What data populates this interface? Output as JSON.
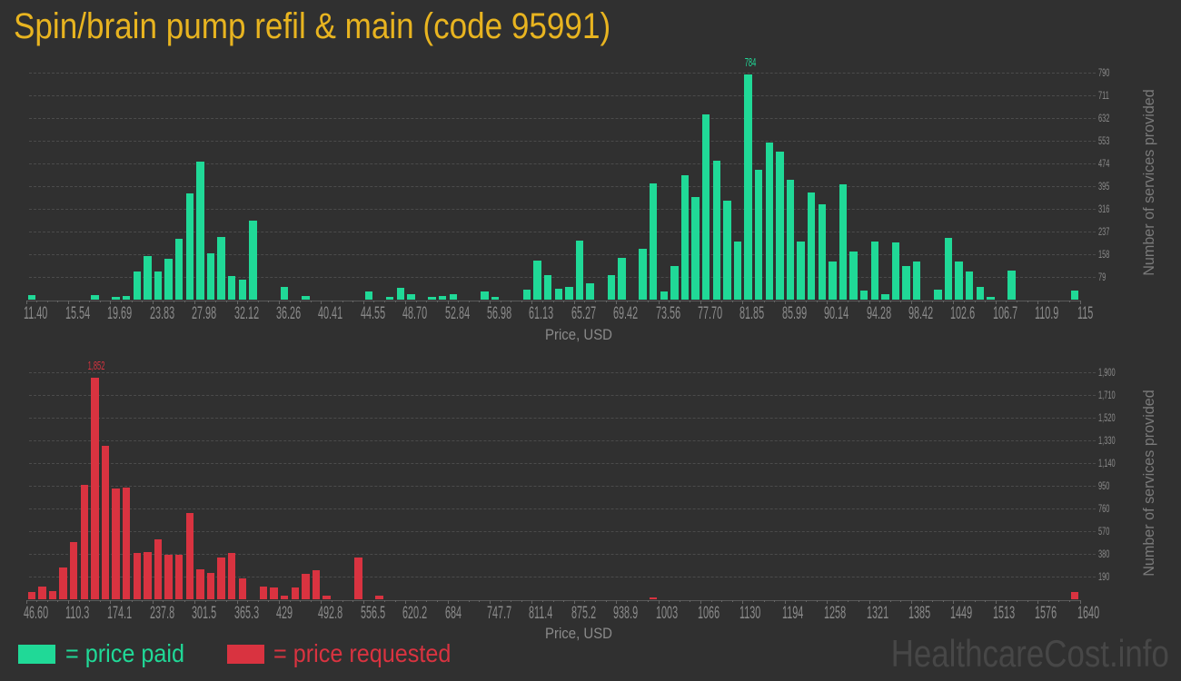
{
  "title": "Spin/brain pump refil & main (code 95991)",
  "colors": {
    "background": "#303030",
    "title": "#e8b420",
    "price_paid": "#20d997",
    "price_requested": "#d93340"
  },
  "chart_data": [
    {
      "type": "bar",
      "series_name": "price paid",
      "title": "",
      "xlabel": "Price, USD",
      "ylabel": "Number of services provided",
      "color": "#20d997",
      "grid": true,
      "xlim": [
        11.4,
        115
      ],
      "ylim": [
        0,
        790
      ],
      "bin_width": 1.036,
      "x_tick_labels": [
        "11.40",
        "15.54",
        "19.69",
        "23.83",
        "27.98",
        "32.12",
        "36.26",
        "40.41",
        "44.55",
        "48.70",
        "52.84",
        "56.98",
        "61.13",
        "65.27",
        "69.42",
        "73.56",
        "77.70",
        "81.85",
        "85.99",
        "90.14",
        "94.28",
        "98.42",
        "102.6",
        "106.7",
        "110.9",
        "115"
      ],
      "y_ticks": [
        79,
        158,
        237,
        316,
        395,
        474,
        553,
        632,
        711,
        790
      ],
      "y_tick_labels": [
        "79",
        "158",
        "237",
        "316",
        "395",
        "474",
        "553",
        "632",
        "711",
        "790"
      ],
      "peak_index": 68,
      "peak_label": "784",
      "x": [
        11.4,
        12.44,
        13.47,
        14.51,
        15.54,
        16.58,
        17.62,
        18.65,
        19.69,
        20.72,
        21.76,
        22.8,
        23.83,
        24.87,
        25.9,
        26.94,
        27.98,
        29.01,
        30.05,
        31.08,
        32.12,
        33.16,
        34.19,
        35.23,
        36.26,
        37.3,
        38.34,
        39.37,
        40.41,
        41.44,
        42.48,
        43.52,
        44.55,
        45.59,
        46.62,
        47.66,
        48.7,
        49.73,
        50.77,
        51.8,
        52.84,
        53.88,
        54.91,
        55.95,
        56.98,
        58.02,
        59.06,
        60.09,
        61.13,
        62.16,
        63.2,
        64.24,
        65.27,
        66.31,
        67.34,
        68.38,
        69.42,
        70.45,
        71.49,
        72.52,
        73.56,
        74.6,
        75.63,
        76.67,
        77.7,
        78.74,
        79.78,
        80.81,
        81.85,
        82.88,
        83.92,
        84.96,
        85.99,
        87.03,
        88.06,
        89.1,
        90.14,
        91.17,
        92.21,
        93.24,
        94.28,
        95.32,
        96.35,
        97.39,
        98.42,
        99.46,
        100.5,
        101.53,
        102.57,
        103.6,
        104.64,
        105.68,
        106.71,
        107.75,
        108.78,
        109.82,
        110.86,
        111.89,
        112.93,
        113.96
      ],
      "values": [
        18,
        0,
        0,
        0,
        0,
        0,
        18,
        0,
        10,
        13,
        98,
        152,
        98,
        143,
        212,
        370,
        480,
        161,
        218,
        85,
        70,
        275,
        0,
        0,
        46,
        0,
        15,
        0,
        0,
        0,
        0,
        0,
        31,
        0,
        12,
        43,
        21,
        0,
        12,
        15,
        21,
        0,
        0,
        31,
        12,
        0,
        0,
        37,
        138,
        88,
        40,
        46,
        208,
        59,
        0,
        87,
        148,
        0,
        179,
        407,
        31,
        119,
        435,
        359,
        644,
        486,
        347,
        204,
        784,
        454,
        549,
        517,
        419,
        204,
        375,
        334,
        135,
        403,
        170,
        34,
        204,
        21,
        201,
        119,
        135,
        0,
        37,
        217,
        135,
        100,
        46,
        12,
        0,
        103,
        0,
        0,
        0,
        0,
        0,
        34
      ]
    },
    {
      "type": "bar",
      "series_name": "price requested",
      "title": "",
      "xlabel": "Price, USD",
      "ylabel": "Number of services provided",
      "color": "#d93340",
      "grid": true,
      "xlim": [
        46.6,
        1640
      ],
      "ylim": [
        0,
        1900
      ],
      "bin_width": 15.934,
      "x_tick_labels": [
        "46.60",
        "110.3",
        "174.1",
        "237.8",
        "301.5",
        "365.3",
        "429",
        "492.8",
        "556.5",
        "620.2",
        "684",
        "747.7",
        "811.4",
        "875.2",
        "938.9",
        "1003",
        "1066",
        "1130",
        "1194",
        "1258",
        "1321",
        "1385",
        "1449",
        "1513",
        "1576",
        "1640"
      ],
      "y_ticks": [
        190,
        380,
        570,
        760,
        950,
        1140,
        1330,
        1520,
        1710,
        1900
      ],
      "y_tick_labels": [
        "190",
        "380",
        "570",
        "760",
        "950",
        "1,140",
        "1,330",
        "1,520",
        "1,710",
        "1,900"
      ],
      "peak_index": 6,
      "peak_label": "1,852",
      "x": [
        46.6,
        62.5,
        78.5,
        94.4,
        110.3,
        126.3,
        142.2,
        158.1,
        174.1,
        190.0,
        205.9,
        221.9,
        237.8,
        253.7,
        269.7,
        285.6,
        301.5,
        317.5,
        333.4,
        349.3,
        365.3,
        381.2,
        397.1,
        413.1,
        429.0,
        444.9,
        460.9,
        476.8,
        492.8,
        508.7,
        524.6,
        540.6,
        556.5,
        572.4,
        588.4,
        604.3,
        620.2,
        636.2,
        652.1,
        668.0,
        684.0,
        699.9,
        715.8,
        731.8,
        747.7,
        763.6,
        779.6,
        795.5,
        811.4,
        827.4,
        843.3,
        859.3,
        875.2,
        891.1,
        907.1,
        923.0,
        938.9,
        954.9,
        970.8,
        986.7,
        1002.7,
        1018.6,
        1034.5,
        1050.5,
        1066.4,
        1082.3,
        1098.3,
        1114.2,
        1130.1,
        1146.1,
        1162.0,
        1178.0,
        1193.9,
        1209.8,
        1225.8,
        1241.7,
        1257.6,
        1273.6,
        1289.5,
        1305.4,
        1321.4,
        1337.3,
        1353.2,
        1369.2,
        1385.1,
        1401.0,
        1417.0,
        1432.9,
        1448.8,
        1464.8,
        1480.7,
        1496.7,
        1512.6,
        1528.5,
        1544.5,
        1560.4,
        1576.3,
        1592.3,
        1608.2,
        1624.1
      ],
      "values": [
        66,
        112,
        74,
        271,
        484,
        963,
        1852,
        1282,
        932,
        940,
        393,
        400,
        507,
        378,
        378,
        727,
        256,
        226,
        355,
        393,
        180,
        0,
        112,
        104,
        36,
        104,
        218,
        248,
        36,
        0,
        0,
        355,
        0,
        36,
        0,
        0,
        0,
        0,
        0,
        0,
        0,
        0,
        0,
        0,
        0,
        0,
        0,
        0,
        0,
        0,
        0,
        0,
        0,
        0,
        0,
        0,
        0,
        0,
        0,
        20,
        0,
        0,
        0,
        0,
        0,
        0,
        0,
        0,
        0,
        0,
        0,
        0,
        0,
        0,
        0,
        0,
        0,
        0,
        0,
        0,
        0,
        0,
        0,
        0,
        0,
        0,
        0,
        0,
        0,
        0,
        0,
        0,
        0,
        0,
        0,
        0,
        0,
        0,
        0,
        66
      ]
    }
  ],
  "legend": [
    {
      "label": "= price paid",
      "color": "#20d997"
    },
    {
      "label": "= price requested",
      "color": "#d93340"
    }
  ],
  "watermark": "HealthcareCost.info"
}
